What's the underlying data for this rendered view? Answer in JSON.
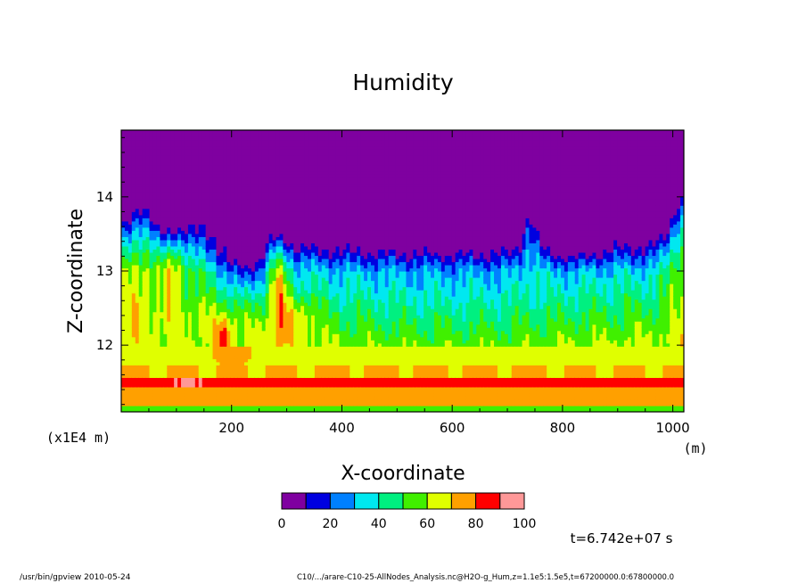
{
  "chart_data": {
    "type": "heatmap",
    "title": "Humidity",
    "xlabel": "X-coordinate",
    "ylabel": "Z-coordinate",
    "x_units": "(m)",
    "y_units": "(x1E4 m)",
    "xlim": [
      0,
      1020
    ],
    "ylim": [
      11.1,
      14.9
    ],
    "x_ticks": [
      200,
      400,
      600,
      800,
      1000
    ],
    "y_ticks": [
      12,
      13,
      14
    ],
    "x_tick_labels": [
      "200",
      "400",
      "600",
      "800",
      "1000"
    ],
    "y_tick_labels": [
      "12",
      "13",
      "14"
    ],
    "contour_levels": [
      0,
      10,
      20,
      30,
      40,
      50,
      60,
      70,
      80,
      90,
      100
    ],
    "level_colors": [
      "#7f00a0",
      "#0000e0",
      "#0080ff",
      "#00e8f0",
      "#00f080",
      "#40f000",
      "#e0ff00",
      "#ffa000",
      "#ff0000",
      "#ff9898"
    ],
    "colorbar_tick_values": [
      0,
      20,
      40,
      60,
      80,
      100
    ],
    "colorbar_tick_labels": [
      "0",
      "20",
      "40",
      "60",
      "80",
      "100"
    ],
    "field_description_rows_by_z": [
      {
        "z": 11.15,
        "humidity": 55
      },
      {
        "z": 11.35,
        "humidity": 70
      },
      {
        "z": 11.5,
        "humidity": 88
      },
      {
        "z": 11.65,
        "humidity": 70
      },
      {
        "z": 11.8,
        "humidity": 62
      },
      {
        "z": 12.1,
        "humidity": 62
      },
      {
        "z": 12.5,
        "humidity": 55
      },
      {
        "z": 12.9,
        "humidity": 45
      },
      {
        "z": 13.3,
        "humidity": 35
      },
      {
        "z": 13.8,
        "humidity": 15
      },
      {
        "z": 14.4,
        "humidity": 5
      }
    ],
    "time_label": "t=6.742e+07 s"
  },
  "footer": {
    "left": "/usr/bin/gpview   2010-05-24",
    "right": "C10/.../arare-C10-25-AllNodes_Analysis.nc@H2O-g_Hum,z=1.1e5:1.5e5,t=67200000.0:67800000.0"
  }
}
